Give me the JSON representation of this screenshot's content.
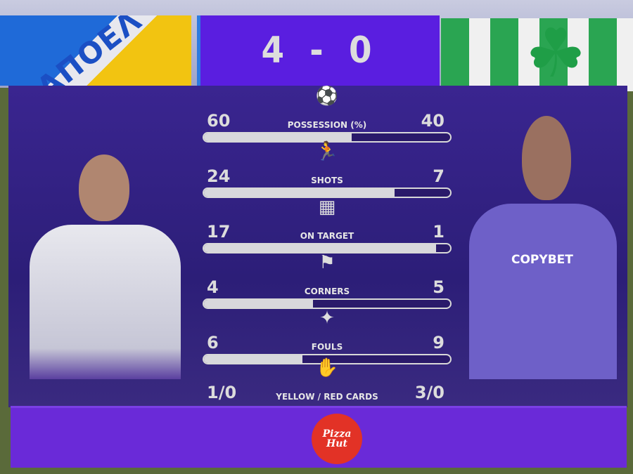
{
  "header": {
    "home_logo_text": "ΑΠΟΕΛ",
    "score": "4 - 0",
    "away_logo_icon": "shamrock-icon"
  },
  "stats": [
    {
      "label": "POSSESSION (%)",
      "home": "60",
      "away": "40",
      "icon": "footballer-dribbling-icon",
      "home_share": 0.6
    },
    {
      "label": "SHOTS",
      "home": "24",
      "away": "7",
      "icon": "player-shooting-icon",
      "home_share": 0.774
    },
    {
      "label": "ON TARGET",
      "home": "17",
      "away": "1",
      "icon": "goal-net-icon",
      "home_share": 0.944
    },
    {
      "label": "CORNERS",
      "home": "4",
      "away": "5",
      "icon": "corner-flag-icon",
      "home_share": 0.444
    },
    {
      "label": "FOULS",
      "home": "6",
      "away": "9",
      "icon": "foul-boot-icon",
      "home_share": 0.4
    }
  ],
  "cards": {
    "label": "YELLOW / RED CARDS",
    "home": "1/0",
    "away": "3/0",
    "icon": "card-hand-icon"
  },
  "away_shirt_sponsor": "COPYBET",
  "sponsor": {
    "logo_text": "Pizza Hut"
  },
  "colors": {
    "panel": "#2c1e78",
    "score_bg": "#5a1ee0",
    "bottom_bar": "#6a2ad8",
    "bar_fill": "#d8d8dc"
  }
}
